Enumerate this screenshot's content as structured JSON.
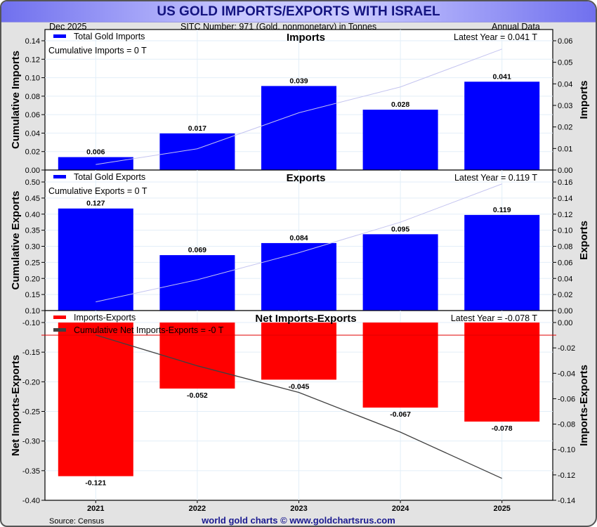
{
  "header": {
    "title": "US GOLD IMPORTS/EXPORTS WITH ISRAEL",
    "date": "Dec  2025",
    "sitc": "SITC Number: 971 (Gold, nonmonetary) in Tonnes",
    "frequency": "Annual Data"
  },
  "footer": {
    "source": "Source: Census",
    "credit": "world gold charts © www.goldchartsrus.com"
  },
  "colors": {
    "imports_bar": "#0000ff",
    "exports_bar": "#0000ff",
    "net_bar": "#ff0000",
    "cumulative_line_light": "#c4c4f0",
    "cumulative_net_line": "#404040",
    "zero_line": "#e00000",
    "title_text": "#141480"
  },
  "chart_data": [
    {
      "type": "bar",
      "title": "Imports",
      "categories": [
        "2021",
        "2022",
        "2023",
        "2024",
        "2025"
      ],
      "legend": "Total Gold Imports",
      "cumulative_label": "Cumulative Imports = 0 T",
      "latest_label": "Latest Year = 0.041 T",
      "values": [
        0.006,
        0.017,
        0.039,
        0.028,
        0.041
      ],
      "value_labels": [
        "0.006",
        "0.017",
        "0.039",
        "0.028",
        "0.041"
      ],
      "cumulative": [
        0.006,
        0.023,
        0.062,
        0.09,
        0.131
      ],
      "ylabel_right": "Imports",
      "ylabel_left": "Cumulative Imports",
      "ylim_right": [
        0,
        0.06
      ],
      "yticks_right": [
        "0.00",
        "0.01",
        "0.02",
        "0.03",
        "0.04",
        "0.05",
        "0.06"
      ],
      "ylim_left": [
        0,
        0.14
      ],
      "yticks_left": [
        "0.00",
        "0.02",
        "0.04",
        "0.06",
        "0.08",
        "0.10",
        "0.12",
        "0.14"
      ]
    },
    {
      "type": "bar",
      "title": "Exports",
      "categories": [
        "2021",
        "2022",
        "2023",
        "2024",
        "2025"
      ],
      "legend": "Total Gold Exports",
      "cumulative_label": "Cumulative Exports = 0 T",
      "latest_label": "Latest Year = 0.119 T",
      "values": [
        0.127,
        0.069,
        0.084,
        0.095,
        0.119
      ],
      "value_labels": [
        "0.127",
        "0.069",
        "0.084",
        "0.095",
        "0.119"
      ],
      "cumulative": [
        0.127,
        0.196,
        0.28,
        0.375,
        0.494
      ],
      "ylabel_right": "Exports",
      "ylabel_left": "Cumulative Exports",
      "ylim_right": [
        0,
        0.16
      ],
      "yticks_right": [
        "0.00",
        "0.02",
        "0.04",
        "0.06",
        "0.08",
        "0.10",
        "0.12",
        "0.14",
        "0.16"
      ],
      "ylim_left": [
        0.1,
        0.5
      ],
      "yticks_left": [
        "0.10",
        "0.15",
        "0.20",
        "0.25",
        "0.30",
        "0.35",
        "0.40",
        "0.45",
        "0.50"
      ]
    },
    {
      "type": "bar",
      "title": "Net Imports-Exports",
      "categories": [
        "2021",
        "2022",
        "2023",
        "2024",
        "2025"
      ],
      "legend": "Imports-Exports",
      "cumulative_label": "Cumulative Net Imports-Exports = -0 T",
      "latest_label": "Latest Year = -0.078 T",
      "values": [
        -0.121,
        -0.052,
        -0.045,
        -0.067,
        -0.078
      ],
      "value_labels": [
        "-0.121",
        "-0.052",
        "-0.045",
        "-0.067",
        "-0.078"
      ],
      "cumulative": [
        -0.121,
        -0.173,
        -0.218,
        -0.285,
        -0.363
      ],
      "ylabel_right": "Imports-Exports",
      "ylabel_left": "Net Imports-Exports",
      "ylim_right": [
        -0.14,
        0.0
      ],
      "yticks_right": [
        "0.00",
        "-0.02",
        "-0.04",
        "-0.06",
        "-0.08",
        "-0.10",
        "-0.12",
        "-0.14"
      ],
      "ylim_left": [
        -0.4,
        -0.1
      ],
      "yticks_left": [
        "-0.10",
        "-0.15",
        "-0.20",
        "-0.25",
        "-0.30",
        "-0.35",
        "-0.40"
      ],
      "zero_line_left_value": -0.1
    }
  ]
}
